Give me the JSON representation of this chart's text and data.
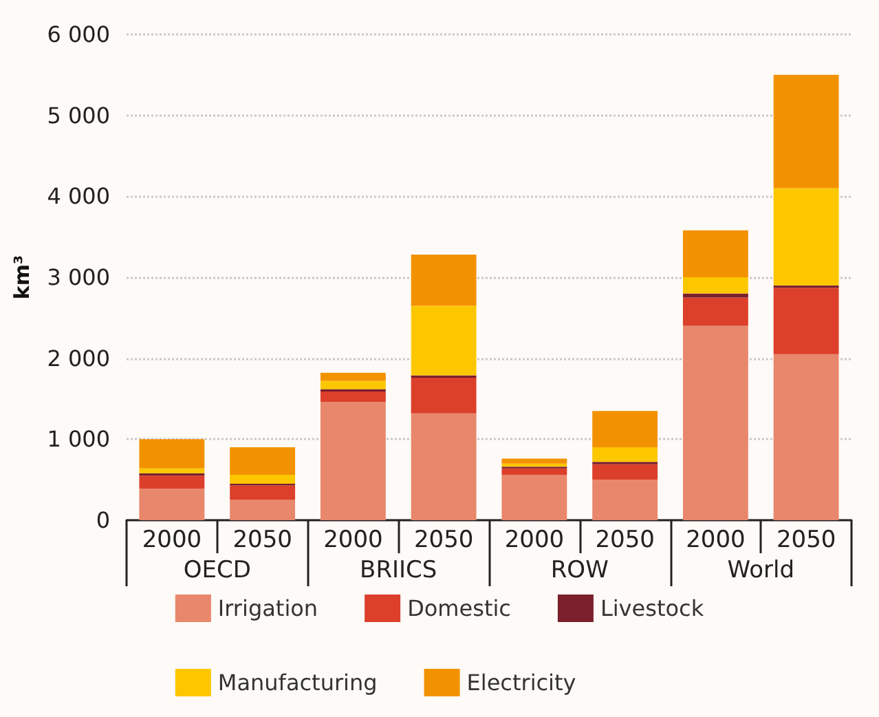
{
  "chart_data": {
    "type": "bar",
    "stacked": true,
    "ylabel": "km³",
    "categories": [
      "2000",
      "2050",
      "2000",
      "2050",
      "2000",
      "2050",
      "2000",
      "2050"
    ],
    "annotations": [
      "OECD",
      "BRIICS",
      "ROW",
      "World"
    ],
    "series": [
      {
        "name": "Irrigation",
        "color": "#e8876b",
        "values": [
          390,
          250,
          1460,
          1320,
          560,
          500,
          2400,
          2050
        ]
      },
      {
        "name": "Domestic",
        "color": "#dc3f2a",
        "values": [
          160,
          180,
          130,
          440,
          80,
          190,
          350,
          820
        ]
      },
      {
        "name": "Livestock",
        "color": "#7a1f2b",
        "values": [
          30,
          20,
          30,
          30,
          20,
          30,
          50,
          30
        ]
      },
      {
        "name": "Manufacturing",
        "color": "#fdc700",
        "values": [
          60,
          110,
          100,
          860,
          40,
          180,
          200,
          1200
        ]
      },
      {
        "name": "Electricity",
        "color": "#f39200",
        "values": [
          360,
          340,
          100,
          630,
          60,
          450,
          580,
          1400
        ]
      }
    ],
    "ylim": [
      0,
      6000
    ],
    "yticks": [
      0,
      {
        "value": 1000,
        "label": "1 000"
      },
      {
        "value": 2000,
        "label": "2 000"
      },
      {
        "value": 3000,
        "label": "3 000"
      },
      {
        "value": 4000,
        "label": "4 000"
      },
      {
        "value": 5000,
        "label": "5 000"
      },
      {
        "value": 6000,
        "label": "6 000"
      }
    ],
    "grid": "y",
    "legend": "bottom"
  }
}
